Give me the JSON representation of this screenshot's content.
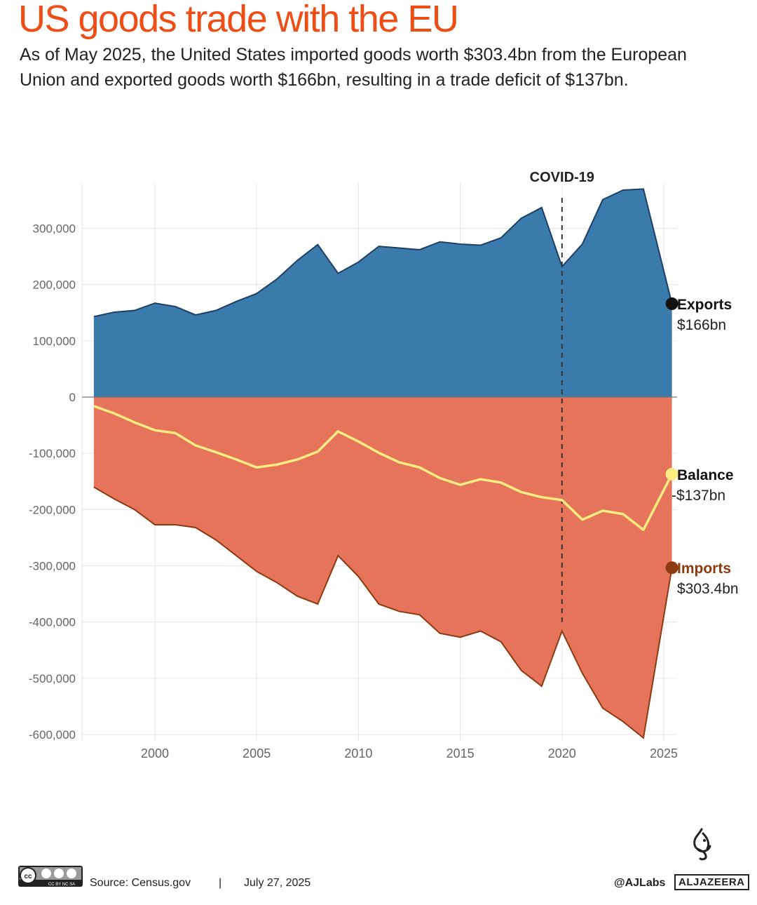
{
  "header": {
    "title": "US goods trade with the EU",
    "subtitle": "As of May 2025, the United States imported goods worth $303.4bn from the European Union and exported goods worth $166bn, resulting in a trade deficit of $137bn."
  },
  "chart_data": {
    "type": "area",
    "title": "US goods trade with the EU",
    "xlabel": "",
    "ylabel": "",
    "xlim": [
      1996.6,
      2026.2
    ],
    "ylim": [
      -600000,
      380000
    ],
    "x_ticks": [
      2000,
      2005,
      2010,
      2015,
      2020,
      2025
    ],
    "x_tick_labels": [
      "2000",
      "2005",
      "2010",
      "2015",
      "2020",
      "2025"
    ],
    "y_ticks": [
      300000,
      200000,
      100000,
      0,
      -100000,
      -200000,
      -300000,
      -400000,
      -500000,
      -600000
    ],
    "y_tick_labels": [
      "300,000",
      "200,000",
      "100,000",
      "0",
      "-100,000",
      "-200,000",
      "-300,000",
      "-400,000",
      "-500,000",
      "-600,000"
    ],
    "grid": true,
    "annotation": {
      "label": "COVID-19",
      "x": 2020
    },
    "series": [
      {
        "name": "Exports",
        "value_label": "$166bn",
        "color": "#3b7bab",
        "line_color": "#1d3f66",
        "x": [
          1997,
          1998,
          1999,
          2000,
          2001,
          2002,
          2003,
          2004,
          2005,
          2006,
          2007,
          2008,
          2009,
          2010,
          2011,
          2012,
          2013,
          2014,
          2015,
          2016,
          2017,
          2018,
          2019,
          2020,
          2021,
          2022,
          2023,
          2024,
          2025.4
        ],
        "values": [
          143000,
          151000,
          154000,
          167000,
          161000,
          146000,
          154000,
          170000,
          184000,
          210000,
          243000,
          271000,
          220000,
          240000,
          268000,
          265000,
          262000,
          276000,
          272000,
          270000,
          283000,
          318000,
          337000,
          232000,
          272000,
          351000,
          368000,
          370000,
          166000
        ]
      },
      {
        "name": "Imports",
        "value_label": "$303.4bn",
        "color": "#e5745a",
        "line_color": "#8c3a10",
        "x": [
          1997,
          1998,
          1999,
          2000,
          2001,
          2002,
          2003,
          2004,
          2005,
          2006,
          2007,
          2008,
          2009,
          2010,
          2011,
          2012,
          2013,
          2014,
          2015,
          2016,
          2017,
          2018,
          2019,
          2020,
          2021,
          2022,
          2023,
          2024,
          2025.4
        ],
        "values": [
          -160000,
          -181000,
          -200000,
          -227000,
          -227000,
          -232000,
          -254000,
          -282000,
          -310000,
          -330000,
          -354000,
          -368000,
          -282000,
          -319000,
          -368000,
          -381000,
          -387000,
          -420000,
          -427000,
          -416000,
          -435000,
          -486000,
          -514000,
          -416000,
          -491000,
          -553000,
          -577000,
          -606000,
          -303400
        ]
      },
      {
        "name": "Balance",
        "value_label": "-$137bn",
        "color": "#fdec82",
        "x": [
          1997,
          1998,
          1999,
          2000,
          2001,
          2002,
          2003,
          2004,
          2005,
          2006,
          2007,
          2008,
          2009,
          2010,
          2011,
          2012,
          2013,
          2014,
          2015,
          2016,
          2017,
          2018,
          2019,
          2020,
          2021,
          2022,
          2023,
          2024,
          2025.4
        ],
        "values": [
          -16000,
          -29000,
          -45000,
          -59000,
          -64000,
          -86000,
          -98000,
          -111000,
          -125000,
          -120000,
          -111000,
          -97000,
          -61000,
          -79000,
          -99000,
          -116000,
          -125000,
          -144000,
          -156000,
          -146000,
          -152000,
          -169000,
          -178000,
          -183000,
          -218000,
          -202000,
          -208000,
          -236000,
          -137000
        ]
      }
    ]
  },
  "footer": {
    "license_badge": "CC BY NC SA",
    "source": "Source:  Census.gov",
    "separator": "|",
    "date": "July 27, 2025",
    "handle": "@AJLabs",
    "logo_text": "ALJAZEERA"
  }
}
